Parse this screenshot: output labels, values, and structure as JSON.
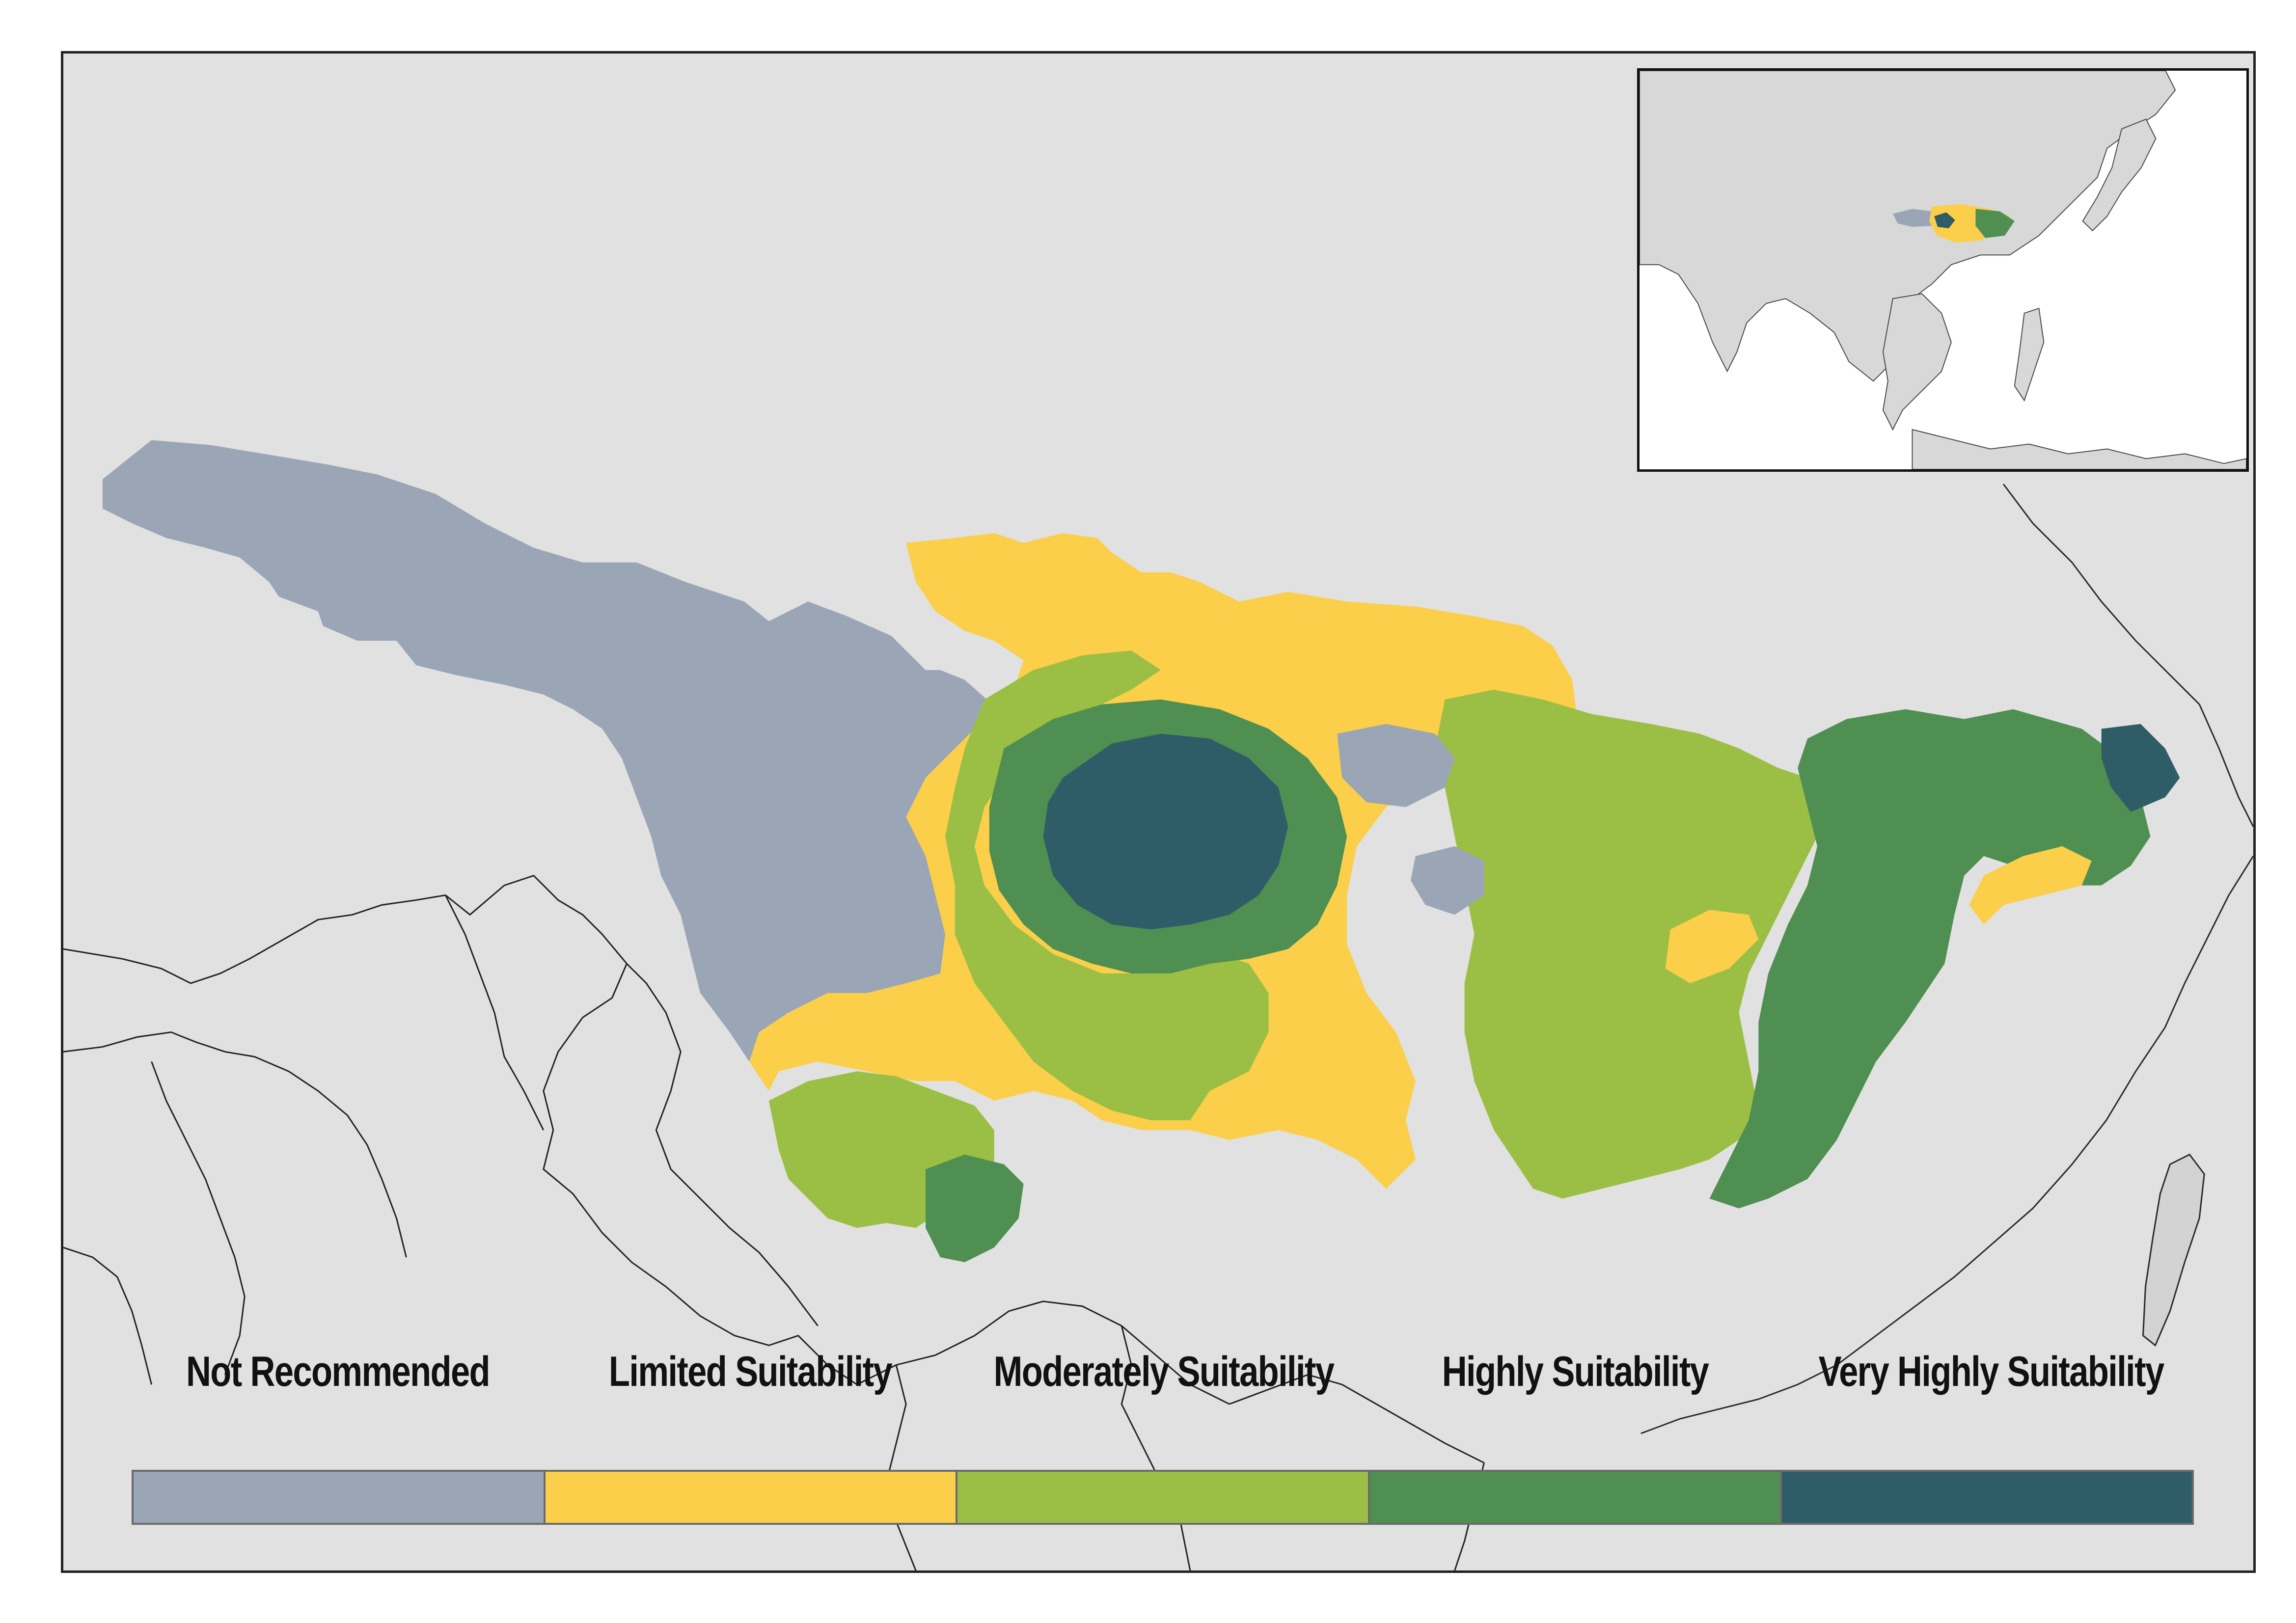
{
  "legend": {
    "classes": [
      {
        "label": "Not Recommended",
        "color": "#9aa6b6"
      },
      {
        "label": "Limited Suitability",
        "color": "#fbcf4a"
      },
      {
        "label": "Moderately Suitability",
        "color": "#9bbf45"
      },
      {
        "label": "Highly Suitability",
        "color": "#4f8f52"
      },
      {
        "label": "Very Highly Suitability",
        "color": "#2f5d67"
      }
    ]
  },
  "map": {
    "background_color": "#e1e1e1",
    "border_color": "#222222",
    "inset": {
      "ocean_color": "#ffffff",
      "land_color": "#d8d8d8"
    }
  }
}
